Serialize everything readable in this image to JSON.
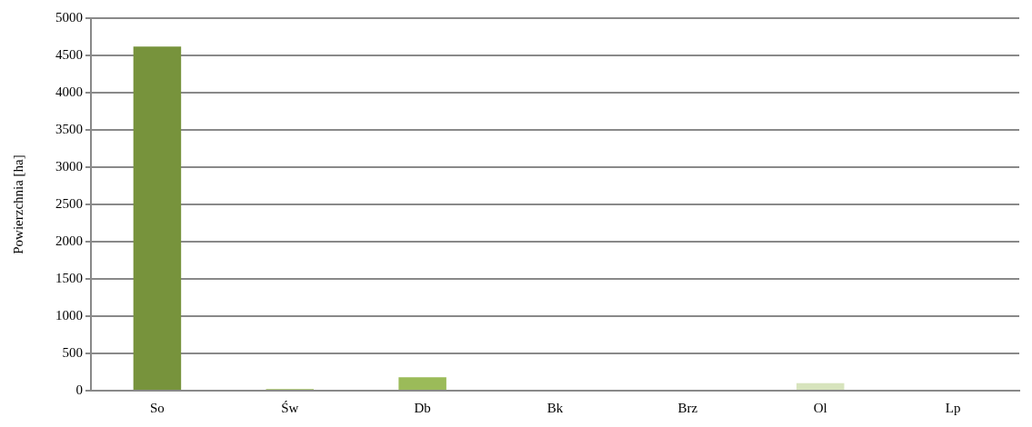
{
  "chart_data": {
    "type": "bar",
    "ylabel": "Powierzchnia [ha]",
    "categories": [
      "So",
      "Św",
      "Db",
      "Bk",
      "Brz",
      "Ol",
      "Lp"
    ],
    "values": [
      4620,
      20,
      180,
      0,
      null,
      100,
      null
    ],
    "colors": [
      "#77933c",
      "#9bbb59",
      "#9bbb59",
      "#9bbb59",
      "#c3d69b",
      "#d7e4bd",
      "#ebf1de"
    ],
    "ylim": [
      0,
      5000
    ],
    "yticks": [
      0,
      500,
      1000,
      1500,
      2000,
      2500,
      3000,
      3500,
      4000,
      4500,
      5000
    ],
    "grid": "y",
    "legend": false
  }
}
